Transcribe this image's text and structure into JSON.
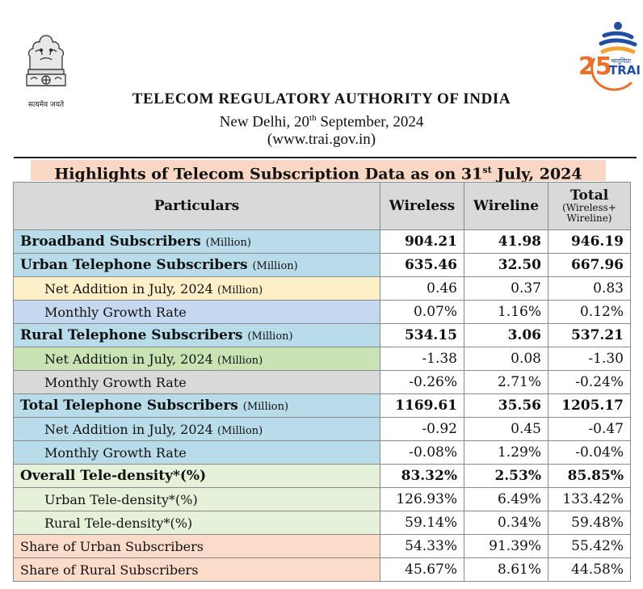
{
  "header": {
    "emblem_motto": "सत्यमेव जयते",
    "organization": "TELECOM REGULATORY AUTHORITY OF INDIA",
    "place_prefix": "New Delhi, 20",
    "place_sup": "th",
    "place_suffix": " September, 2024",
    "website": "(www.trai.gov.in)",
    "logo_number": "25",
    "logo_text": "TRAI",
    "logo_hindi": "भादूविप्रा"
  },
  "banner": {
    "prefix": "Highlights of Telecom Subscription Data as on 31",
    "sup": "st",
    "suffix": " July, 2024"
  },
  "table": {
    "col_particulars": "Particulars",
    "col_wireless": "Wireless",
    "col_wireline": "Wireline",
    "col_total": "Total",
    "col_total_sub": "(Wireless+ Wireline)",
    "rows": [
      {
        "label": "Broadband Subscribers",
        "unit": "(Million)",
        "wireless": "904.21",
        "wireline": "41.98",
        "total": "946.19"
      },
      {
        "label": "Urban Telephone Subscribers",
        "unit": "(Million)",
        "wireless": "635.46",
        "wireline": "32.50",
        "total": "667.96"
      },
      {
        "label": "Net Addition in July, 2024",
        "unit": "(Million)",
        "wireless": "0.46",
        "wireline": "0.37",
        "total": "0.83"
      },
      {
        "label": "Monthly Growth Rate",
        "unit": "",
        "wireless": "0.07%",
        "wireline": "1.16%",
        "total": "0.12%"
      },
      {
        "label": "Rural Telephone Subscribers",
        "unit": "(Million)",
        "wireless": "534.15",
        "wireline": "3.06",
        "total": "537.21"
      },
      {
        "label": "Net Addition in July, 2024",
        "unit": "(Million)",
        "wireless": "-1.38",
        "wireline": "0.08",
        "total": "-1.30"
      },
      {
        "label": "Monthly Growth Rate",
        "unit": "",
        "wireless": "-0.26%",
        "wireline": "2.71%",
        "total": "-0.24%"
      },
      {
        "label": "Total Telephone Subscribers",
        "unit": "(Million)",
        "wireless": "1169.61",
        "wireline": "35.56",
        "total": "1205.17"
      },
      {
        "label": "Net Addition in July, 2024",
        "unit": "(Million)",
        "wireless": "-0.92",
        "wireline": "0.45",
        "total": "-0.47"
      },
      {
        "label": "Monthly Growth Rate",
        "unit": "",
        "wireless": "-0.08%",
        "wireline": "1.29%",
        "total": "-0.04%"
      },
      {
        "label": "Overall Tele-density*(%)",
        "unit": "",
        "wireless": "83.32%",
        "wireline": "2.53%",
        "total": "85.85%"
      },
      {
        "label": "Urban Tele-density*(%)",
        "unit": "",
        "wireless": "126.93%",
        "wireline": "6.49%",
        "total": "133.42%"
      },
      {
        "label": "Rural Tele-density*(%)",
        "unit": "",
        "wireless": "59.14%",
        "wireline": "0.34%",
        "total": "59.48%"
      },
      {
        "label": "Share of Urban Subscribers",
        "unit": "",
        "wireless": "54.33%",
        "wireline": "91.39%",
        "total": "55.42%"
      },
      {
        "label": "Share of Rural Subscribers",
        "unit": "",
        "wireless": "45.67%",
        "wireline": "8.61%",
        "total": "44.58%"
      }
    ]
  },
  "colors": {
    "banner_bg": "#f9d7c4",
    "header_bg": "#d9d9d9",
    "blue": "#b8dce9",
    "yellow": "#fdefc8",
    "light_blue": "#c6d8ef",
    "green": "#c9e3b4",
    "grey": "#d9d9d9",
    "light_green": "#e6f1d9",
    "peach": "#fbdccb",
    "logo_orange": "#e8702a",
    "logo_blue": "#1f4fa0"
  },
  "icons": [
    "national-emblem-icon",
    "trai-25-logo-icon"
  ]
}
